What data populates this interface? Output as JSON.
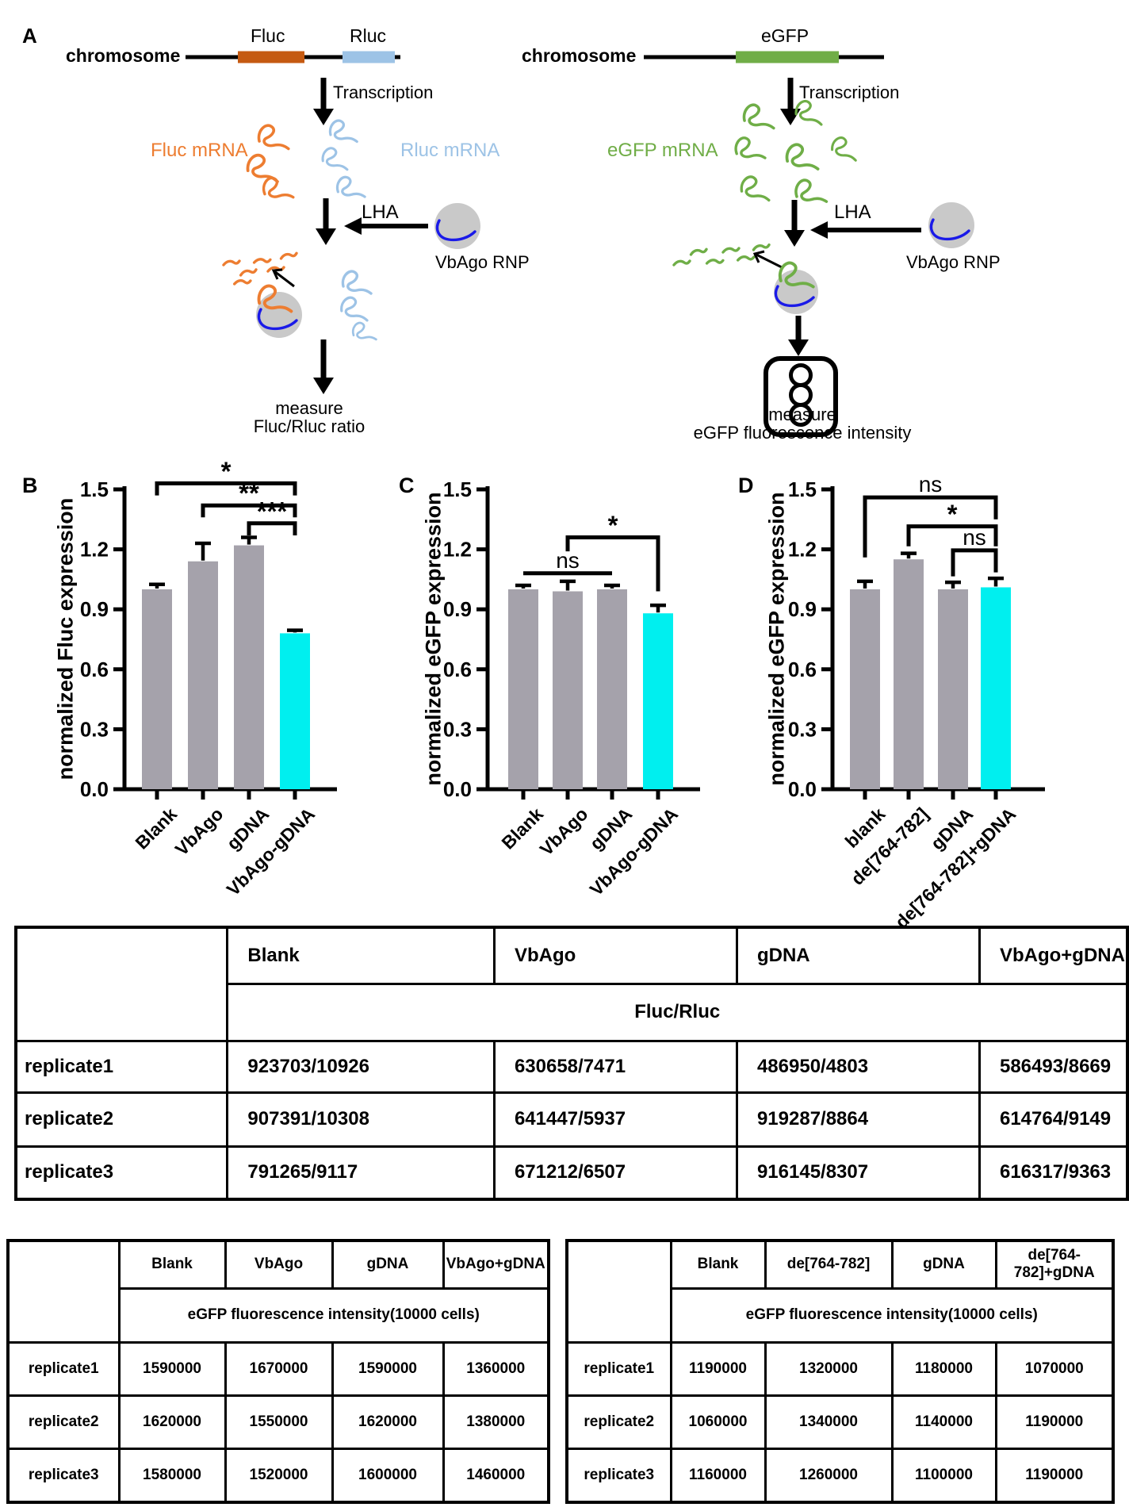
{
  "colors": {
    "fluc_gene": "#C55A11",
    "fluc_mrna": "#ED7D31",
    "rluc": "#9DC3E6",
    "egfp_gene": "#70AD47",
    "egfp_mrna": "#6FAE47",
    "guide_dna": "#1A1AE8",
    "rnp_body": "#C9C9C9",
    "bar_gray": "#A5A2AB",
    "bar_cyan": "#00EFEF"
  },
  "diagram": {
    "panel_label": "A",
    "left": {
      "chromosome_label": "chromosome",
      "gene1_label": "Fluc",
      "gene2_label": "Rluc",
      "transcription_label": "Transcription",
      "mrna1_label": "Fluc mRNA",
      "mrna2_label": "Rluc mRNA",
      "lha_label": "LHA",
      "rnp_label": "VbAgo RNP",
      "measure_line1": "measure",
      "measure_line2": "Fluc/Rluc ratio"
    },
    "right": {
      "chromosome_label": "chromosome",
      "gene_label": "eGFP",
      "transcription_label": "Transcription",
      "mrna_label": "eGFP mRNA",
      "lha_label": "LHA",
      "rnp_label": "VbAgo RNP",
      "measure_line1": "measure",
      "measure_line2": "eGFP fluorescence intensity"
    }
  },
  "chart_data": [
    {
      "type": "bar",
      "panel": "B",
      "ylabel": "normalized Fluc expression",
      "categories": [
        "Blank",
        "VbAgo",
        "gDNA",
        "VbAgo-gDNA"
      ],
      "values": [
        1.0,
        1.14,
        1.22,
        0.78
      ],
      "errors": [
        0.025,
        0.09,
        0.04,
        0.015
      ],
      "bar_colors": [
        "#A5A2AB",
        "#A5A2AB",
        "#A5A2AB",
        "#00EFEF"
      ],
      "ylim": [
        0,
        1.5
      ],
      "yticks": [
        "0.0",
        "0.3",
        "0.6",
        "0.9",
        "1.2",
        "1.5"
      ],
      "brackets": [
        {
          "label": "*",
          "from": 0,
          "to": 3,
          "y": 1.53,
          "ld": 0.06,
          "rd": 0.06
        },
        {
          "label": "**",
          "from": 1,
          "to": 3,
          "y": 1.42,
          "ld": 0.06,
          "rd": 0.06
        },
        {
          "label": "***",
          "from": 2,
          "to": 3,
          "y": 1.33,
          "ld": 0.06,
          "rd": 0.06
        }
      ]
    },
    {
      "type": "bar",
      "panel": "C",
      "ylabel": "normalized eGFP expression",
      "categories": [
        "Blank",
        "VbAgo",
        "gDNA",
        "VbAgo-gDNA"
      ],
      "values": [
        1.0,
        0.99,
        1.0,
        0.88
      ],
      "errors": [
        0.02,
        0.05,
        0.02,
        0.04
      ],
      "bar_colors": [
        "#A5A2AB",
        "#A5A2AB",
        "#A5A2AB",
        "#00EFEF"
      ],
      "ylim": [
        0,
        1.5
      ],
      "yticks": [
        "0.0",
        "0.3",
        "0.6",
        "0.9",
        "1.2",
        "1.5"
      ],
      "brackets": [
        {
          "label": "ns",
          "from": 0,
          "to": 2,
          "y": 1.08,
          "ld": 0,
          "rd": 0
        },
        {
          "label": "*",
          "from": 1,
          "to": 3,
          "y": 1.26,
          "ld": 0.07,
          "rd": 0.27
        }
      ]
    },
    {
      "type": "bar",
      "panel": "D",
      "ylabel": "normalized eGFP expression",
      "categories": [
        "blank",
        "de[764-782]",
        "gDNA",
        "de[764-782]+gDNA"
      ],
      "values": [
        1.0,
        1.15,
        1.0,
        1.01
      ],
      "errors": [
        0.04,
        0.03,
        0.035,
        0.045
      ],
      "bar_colors": [
        "#A5A2AB",
        "#A5A2AB",
        "#A5A2AB",
        "#00EFEF"
      ],
      "ylim": [
        0,
        1.5
      ],
      "yticks": [
        "0.0",
        "0.3",
        "0.6",
        "0.9",
        "1.2",
        "1.5"
      ],
      "brackets": [
        {
          "label": "ns",
          "from": 0,
          "to": 3,
          "y": 1.46,
          "ld": 0.3,
          "rd": 0.11
        },
        {
          "label": "*",
          "from": 1,
          "to": 3,
          "y": 1.315,
          "ld": 0.1,
          "rd": 0.1
        },
        {
          "label": "ns",
          "from": 2,
          "to": 3,
          "y": 1.195,
          "ld": 0.13,
          "rd": 0.11
        }
      ]
    }
  ],
  "tables": {
    "fluc_rluc": {
      "col_headers": [
        "Blank",
        "VbAgo",
        "gDNA",
        "VbAgo+gDNA"
      ],
      "span_header": "Fluc/Rluc",
      "row_headers": [
        "replicate1",
        "replicate2",
        "replicate3"
      ],
      "rows": [
        [
          "923703/10926",
          "630658/7471",
          "486950/4803",
          "586493/8669"
        ],
        [
          "907391/10308",
          "641447/5937",
          "919287/8864",
          "614764/9149"
        ],
        [
          "791265/9117",
          "671212/6507",
          "916145/8307",
          "616317/9363"
        ]
      ]
    },
    "egfp_left": {
      "col_headers": [
        "Blank",
        "VbAgo",
        "gDNA",
        "VbAgo+gDNA"
      ],
      "span_header": "eGFP fluorescence intensity(10000 cells)",
      "row_headers": [
        "replicate1",
        "replicate2",
        "replicate3"
      ],
      "rows": [
        [
          "1590000",
          "1670000",
          "1590000",
          "1360000"
        ],
        [
          "1620000",
          "1550000",
          "1620000",
          "1380000"
        ],
        [
          "1580000",
          "1520000",
          "1600000",
          "1460000"
        ]
      ]
    },
    "egfp_right": {
      "col_headers": [
        "Blank",
        "de[764-782]",
        "gDNA",
        "de[764-782]+gDNA"
      ],
      "span_header": "eGFP fluorescence intensity(10000 cells)",
      "row_headers": [
        "replicate1",
        "replicate2",
        "replicate3"
      ],
      "rows": [
        [
          "1190000",
          "1320000",
          "1180000",
          "1070000"
        ],
        [
          "1060000",
          "1340000",
          "1140000",
          "1190000"
        ],
        [
          "1160000",
          "1260000",
          "1100000",
          "1190000"
        ]
      ]
    }
  }
}
